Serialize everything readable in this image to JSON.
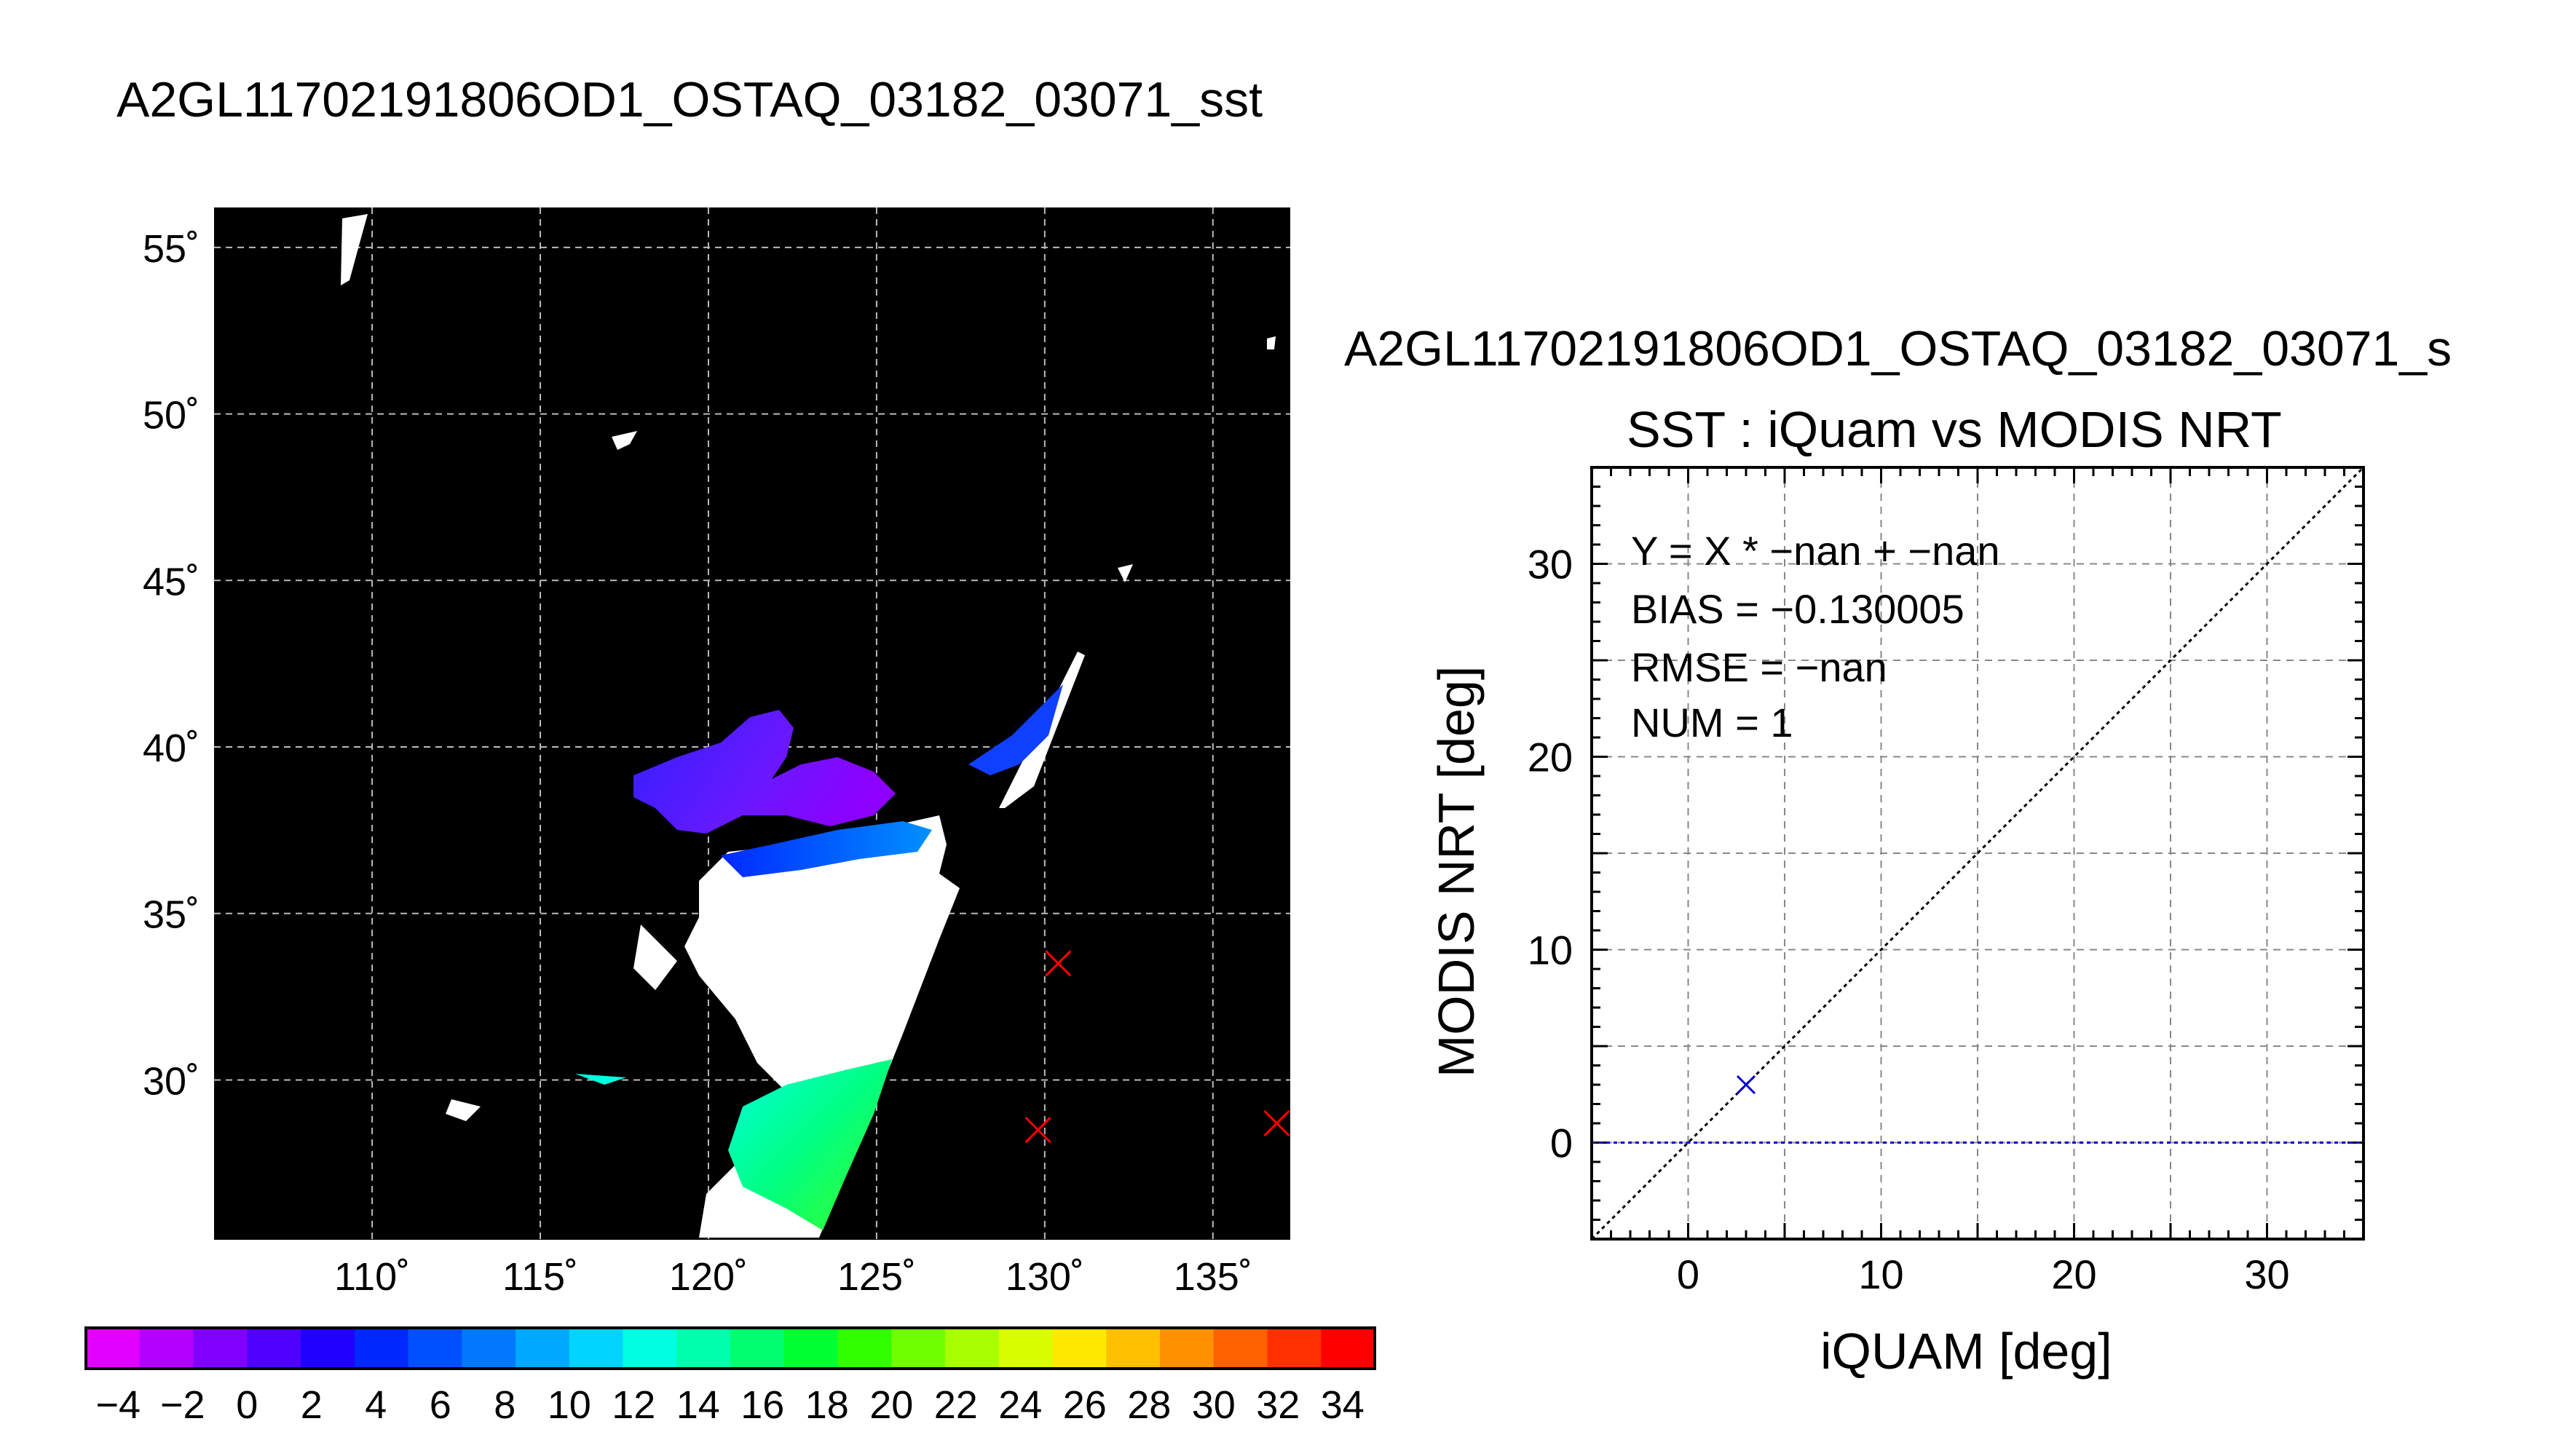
{
  "page_title": "A2GL11702191806OD1_OSTAQ_03182_03071_sst",
  "chart_data": [
    {
      "type": "heatmap",
      "name": "sst-map",
      "title": "",
      "xlabel": "",
      "ylabel": "",
      "xlim": [
        105.3,
        137.3
      ],
      "ylim": [
        25.2,
        56.2
      ],
      "x_ticks": [
        110,
        115,
        120,
        125,
        130,
        135
      ],
      "x_tick_labels": [
        "110˚",
        "115˚",
        "120˚",
        "125˚",
        "130˚",
        "135˚"
      ],
      "y_ticks": [
        30,
        35,
        40,
        45,
        50,
        55
      ],
      "y_tick_labels": [
        "30˚",
        "35˚",
        "40˚",
        "45˚",
        "50˚",
        "55˚"
      ],
      "grid": true,
      "background_color": "#000000",
      "markers": [
        {
          "lon": 130.4,
          "lat": 33.5,
          "color": "#ff0000",
          "symbol": "x"
        },
        {
          "lon": 129.8,
          "lat": 28.5,
          "color": "#ff0000",
          "symbol": "x"
        },
        {
          "lon": 136.9,
          "lat": 28.7,
          "color": "#ff0000",
          "symbol": "x"
        }
      ],
      "colorbar": {
        "min": -5,
        "max": 35,
        "tick_values": [
          -4,
          -2,
          0,
          2,
          4,
          6,
          8,
          10,
          12,
          14,
          16,
          18,
          20,
          22,
          24,
          26,
          28,
          30,
          32,
          34
        ],
        "tick_labels": [
          "−4",
          "−2",
          "0",
          "2",
          "4",
          "6",
          "8",
          "10",
          "12",
          "14",
          "16",
          "18",
          "20",
          "22",
          "24",
          "26",
          "28",
          "30",
          "32",
          "34"
        ],
        "colors": [
          "#e400ff",
          "#b400ff",
          "#8000ff",
          "#5000ff",
          "#2000ff",
          "#0028ff",
          "#0050ff",
          "#0078ff",
          "#00a8ff",
          "#00d4ff",
          "#00ffe0",
          "#00ffaa",
          "#00ff70",
          "#00ff30",
          "#30ff00",
          "#70ff00",
          "#a8ff00",
          "#d8ff00",
          "#ffe800",
          "#ffc000",
          "#ff9000",
          "#ff6000",
          "#ff3000",
          "#ff0000"
        ]
      }
    },
    {
      "type": "scatter",
      "name": "sst-scatter",
      "header": "A2GL11702191806OD1_OSTAQ_03182_03071_s",
      "title": "SST : iQuam vs MODIS NRT",
      "xlabel": "iQUAM [deg]",
      "ylabel": "MODIS NRT [deg]",
      "xlim": [
        -5,
        35
      ],
      "ylim": [
        -5,
        35
      ],
      "x_ticks": [
        0,
        10,
        20,
        30
      ],
      "y_ticks": [
        0,
        10,
        20,
        30
      ],
      "grid": true,
      "points": [
        {
          "x": 3,
          "y": 3
        }
      ],
      "point_color": "#0000cc",
      "reference_line": {
        "type": "y=x",
        "color": "#000000"
      },
      "zero_line": {
        "y": 0,
        "color": "#0000cc"
      },
      "stats": [
        "Y = X * −nan + −nan",
        "BIAS = −0.130005",
        "RMSE = −nan",
        "NUM = 1"
      ]
    }
  ]
}
